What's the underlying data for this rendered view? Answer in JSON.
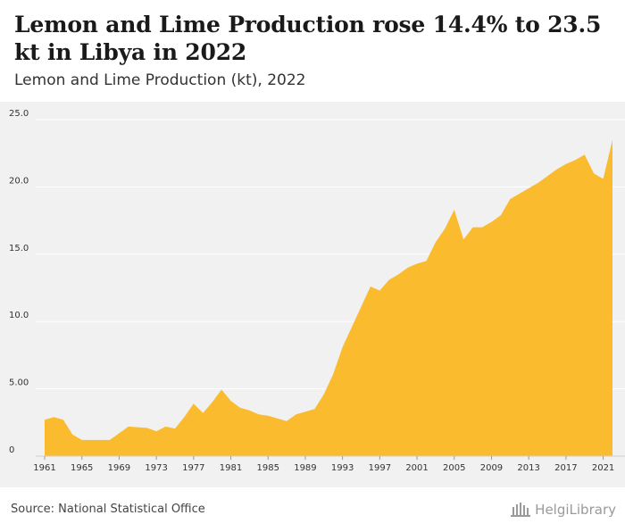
{
  "title": "Lemon and Lime Production rose 14.4% to 23.5 kt in Libya in 2022",
  "subtitle": "Lemon and Lime Production (kt), 2022",
  "source": "Source: National Statistical Office",
  "brand": {
    "name": "HelgiLibrary",
    "icon": "library-building-icon"
  },
  "colors": {
    "area": "#fbbb2e",
    "background": "#f1f1f1",
    "grid": "#ffffff"
  },
  "chart_data": {
    "type": "area",
    "title": "Lemon and Lime Production (kt), 2022",
    "xlabel": "",
    "ylabel": "",
    "ylim": [
      0,
      25
    ],
    "yticks": [
      {
        "value": 0,
        "label": "0"
      },
      {
        "value": 5,
        "label": "5.00"
      },
      {
        "value": 10,
        "label": "10.0"
      },
      {
        "value": 15,
        "label": "15.0"
      },
      {
        "value": 20,
        "label": "20.0"
      },
      {
        "value": 25,
        "label": "25.0"
      }
    ],
    "xticks": [
      "1961",
      "1965",
      "1969",
      "1973",
      "1977",
      "1981",
      "1985",
      "1989",
      "1993",
      "1997",
      "2001",
      "2005",
      "2009",
      "2013",
      "2017",
      "2021"
    ],
    "grid": true,
    "x": [
      1961,
      1962,
      1963,
      1964,
      1965,
      1966,
      1967,
      1968,
      1969,
      1970,
      1971,
      1972,
      1973,
      1974,
      1975,
      1976,
      1977,
      1978,
      1979,
      1980,
      1981,
      1982,
      1983,
      1984,
      1985,
      1986,
      1987,
      1988,
      1989,
      1990,
      1991,
      1992,
      1993,
      1994,
      1995,
      1996,
      1997,
      1998,
      1999,
      2000,
      2001,
      2002,
      2003,
      2004,
      2005,
      2006,
      2007,
      2008,
      2009,
      2010,
      2011,
      2012,
      2013,
      2014,
      2015,
      2016,
      2017,
      2018,
      2019,
      2020,
      2021,
      2022
    ],
    "series": [
      {
        "values": [
          2.7,
          2.9,
          2.7,
          1.6,
          1.2,
          1.2,
          1.2,
          1.2,
          1.7,
          2.2,
          2.15,
          2.1,
          1.85,
          2.2,
          2.05,
          2.9,
          3.9,
          3.2,
          4.0,
          4.95,
          4.1,
          3.6,
          3.4,
          3.1,
          3.0,
          2.8,
          2.6,
          3.1,
          3.3,
          3.5,
          4.6,
          6.1,
          8.1,
          9.6,
          11.1,
          12.6,
          12.3,
          13.1,
          13.5,
          14.0,
          14.3,
          14.5,
          15.9,
          16.9,
          18.3,
          16.1,
          17.0,
          17.0,
          17.4,
          17.9,
          19.1,
          19.5,
          19.9,
          20.3,
          20.8,
          21.3,
          21.7,
          22.0,
          22.4,
          21.0,
          20.6,
          23.5
        ]
      }
    ]
  }
}
